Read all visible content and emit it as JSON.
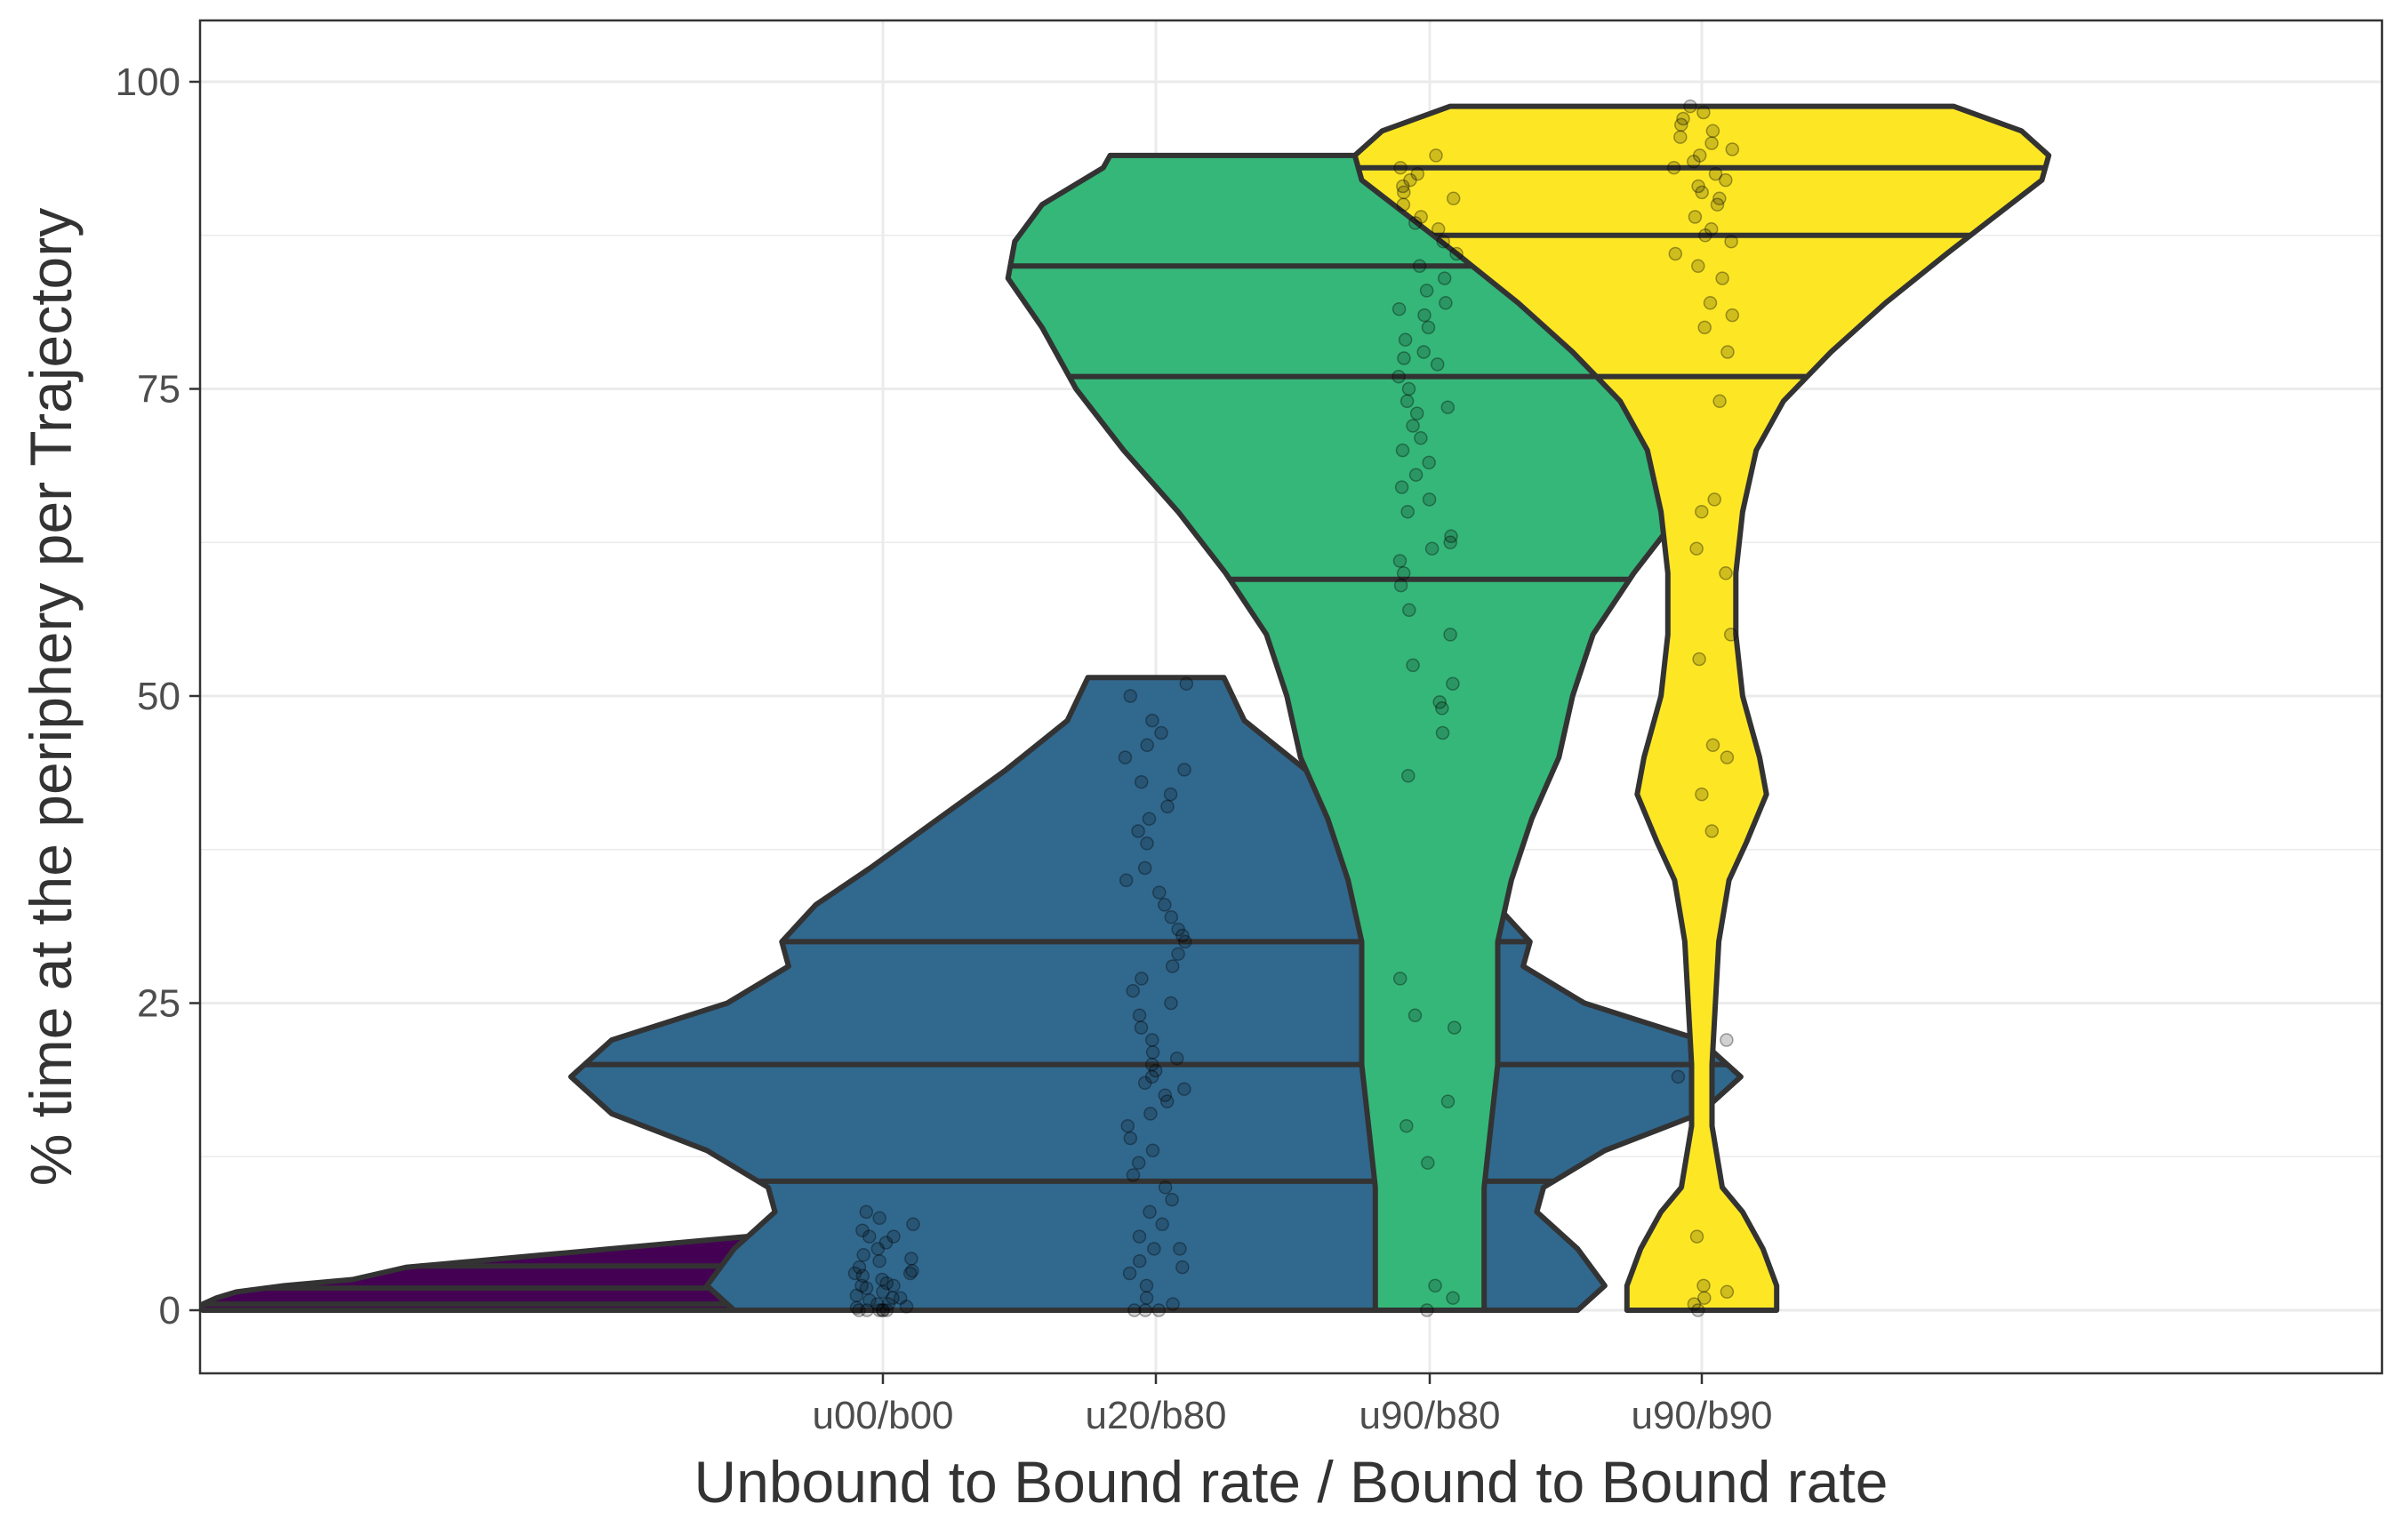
{
  "chart_data": {
    "type": "violin",
    "xlabel": "Unbound to Bound rate / Bound to Bound rate",
    "ylabel": "% time at the periphery per Trajectory",
    "categories": [
      "u00/b00",
      "u20/b80",
      "u90/b80",
      "u90/b90"
    ],
    "ylim": [
      -5,
      105
    ],
    "yticks": [
      0,
      25,
      50,
      75,
      100
    ],
    "grid": true,
    "legend": "none",
    "series": [
      {
        "category": "u00/b00",
        "color": "#440154",
        "range": [
          0,
          8
        ],
        "quantiles": [
          0.5,
          1.8,
          3.6
        ],
        "density": [
          [
            0,
            1.0
          ],
          [
            0.5,
            1.0
          ],
          [
            1.0,
            0.98
          ],
          [
            1.5,
            0.95
          ],
          [
            2,
            0.88
          ],
          [
            2.5,
            0.78
          ],
          [
            3,
            0.74
          ],
          [
            3.5,
            0.7
          ],
          [
            4,
            0.6
          ],
          [
            4.5,
            0.5
          ],
          [
            5,
            0.4
          ],
          [
            5.5,
            0.3
          ],
          [
            6,
            0.2
          ],
          [
            6.5,
            0.105
          ],
          [
            7,
            0.12
          ],
          [
            7.5,
            0.12
          ],
          [
            8,
            0.12
          ]
        ],
        "points": [
          0,
          0,
          0,
          0,
          0,
          0,
          0.2,
          0.3,
          0.5,
          0.5,
          0.8,
          1,
          1,
          1.2,
          1.5,
          1.8,
          2,
          2,
          2.2,
          2.5,
          2.8,
          3,
          3,
          3.2,
          3.5,
          4,
          4.2,
          4.5,
          5,
          5.5,
          6,
          6,
          6.5,
          7,
          7.5,
          8
        ]
      },
      {
        "category": "u20/b80",
        "color": "#31688e",
        "range": [
          0,
          51.5
        ],
        "quantiles": [
          10.5,
          20,
          30
        ],
        "density": [
          [
            0,
            0.62
          ],
          [
            2,
            0.66
          ],
          [
            5,
            0.62
          ],
          [
            8,
            0.56
          ],
          [
            10,
            0.57
          ],
          [
            13,
            0.66
          ],
          [
            16,
            0.8
          ],
          [
            19,
            0.86
          ],
          [
            22,
            0.8
          ],
          [
            25,
            0.63
          ],
          [
            28,
            0.54
          ],
          [
            30,
            0.55
          ],
          [
            33,
            0.5
          ],
          [
            36,
            0.42
          ],
          [
            40,
            0.32
          ],
          [
            44,
            0.22
          ],
          [
            48,
            0.13
          ],
          [
            51.5,
            0.1
          ]
        ],
        "points": [
          0,
          0,
          0,
          0.5,
          1,
          2,
          3,
          3.5,
          4,
          5,
          5,
          6,
          7,
          8,
          9,
          10,
          11,
          12,
          13,
          14,
          15,
          16,
          17,
          17.5,
          18,
          18.5,
          19,
          19.5,
          20,
          20.5,
          21,
          22,
          23,
          24,
          25,
          26,
          27,
          28,
          29,
          30,
          30.5,
          31,
          32,
          33,
          34,
          35,
          36,
          38,
          39,
          40,
          41,
          42,
          43,
          44,
          45,
          46,
          47,
          48,
          50,
          51
        ]
      },
      {
        "category": "u90/b80",
        "color": "#35b779",
        "range": [
          0,
          94
        ],
        "quantiles": [
          59.5,
          76,
          85
        ],
        "density": [
          [
            0,
            0.08
          ],
          [
            5,
            0.08
          ],
          [
            10,
            0.08
          ],
          [
            15,
            0.09
          ],
          [
            20,
            0.1
          ],
          [
            25,
            0.1
          ],
          [
            30,
            0.1
          ],
          [
            35,
            0.12
          ],
          [
            40,
            0.15
          ],
          [
            45,
            0.19
          ],
          [
            50,
            0.21
          ],
          [
            55,
            0.24
          ],
          [
            60,
            0.3
          ],
          [
            65,
            0.37
          ],
          [
            70,
            0.45
          ],
          [
            75,
            0.52
          ],
          [
            80,
            0.57
          ],
          [
            84,
            0.62
          ],
          [
            87,
            0.61
          ],
          [
            90,
            0.57
          ],
          [
            93,
            0.48
          ],
          [
            94,
            0.47
          ]
        ],
        "points": [
          0,
          1,
          2,
          12,
          15,
          17,
          23,
          24,
          27,
          43.5,
          47,
          49,
          49.5,
          51,
          52.5,
          55,
          57,
          59,
          60,
          61,
          62,
          62.5,
          63,
          65,
          66,
          67,
          68,
          69,
          70,
          71,
          72,
          73,
          73.5,
          74,
          75,
          76,
          77,
          77.5,
          78,
          79,
          80,
          81,
          81.5,
          82,
          83,
          84,
          85,
          86,
          87,
          88,
          88.5,
          89,
          90,
          90.5,
          91,
          91.5,
          92,
          92.5,
          93,
          94
        ]
      },
      {
        "category": "u90/b90",
        "color": "#fde725",
        "range": [
          0,
          98
        ],
        "quantiles": [
          76,
          87.5,
          93
        ],
        "density": [
          [
            0,
            0.11
          ],
          [
            2,
            0.11
          ],
          [
            5,
            0.09
          ],
          [
            8,
            0.06
          ],
          [
            10,
            0.03
          ],
          [
            15,
            0.015
          ],
          [
            20,
            0.015
          ],
          [
            25,
            0.02
          ],
          [
            30,
            0.025
          ],
          [
            35,
            0.04
          ],
          [
            38,
            0.065
          ],
          [
            42,
            0.095
          ],
          [
            45,
            0.085
          ],
          [
            50,
            0.06
          ],
          [
            55,
            0.05
          ],
          [
            60,
            0.05
          ],
          [
            65,
            0.06
          ],
          [
            70,
            0.08
          ],
          [
            74,
            0.12
          ],
          [
            78,
            0.19
          ],
          [
            82,
            0.27
          ],
          [
            86,
            0.36
          ],
          [
            89,
            0.43
          ],
          [
            92,
            0.5
          ],
          [
            94,
            0.51
          ],
          [
            96,
            0.47
          ],
          [
            98,
            0.37
          ]
        ],
        "points": [
          0,
          0.5,
          1,
          1.5,
          2,
          6,
          19,
          22,
          39,
          42,
          45,
          46,
          53,
          55,
          60,
          62,
          65,
          66,
          74,
          78,
          80,
          81,
          82,
          84,
          85,
          86,
          87,
          87.5,
          88,
          89,
          90,
          90.5,
          91,
          91.5,
          92,
          92.5,
          93,
          93.5,
          94,
          94.5,
          95,
          95.5,
          96,
          96.5,
          97,
          97.5,
          98
        ]
      }
    ]
  }
}
